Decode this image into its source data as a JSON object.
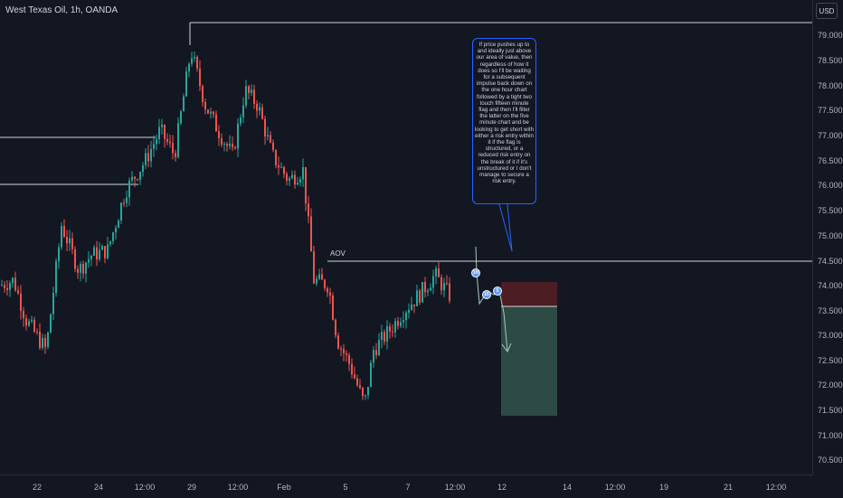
{
  "header": {
    "symbol_title": "West Texas Oil, 1h, OANDA",
    "currency": "USD"
  },
  "price_axis": {
    "ticks": [
      "79.000",
      "78.500",
      "78.000",
      "77.500",
      "77.000",
      "76.500",
      "76.000",
      "75.500",
      "75.000",
      "74.500",
      "74.000",
      "73.500",
      "73.000",
      "72.500",
      "72.000",
      "71.500",
      "71.000",
      "70.500"
    ],
    "current_price": "74.500"
  },
  "time_axis": {
    "ticks": [
      "22",
      "24",
      "12:00",
      "29",
      "12:00",
      "Feb",
      "5",
      "7",
      "12:00",
      "12",
      "14",
      "12:00",
      "19",
      "21",
      "12:00"
    ]
  },
  "annotations": {
    "aov_label": "AOV",
    "note": "If price pushes up to and ideally just above our area of value, then regardless of how it does so I'll be waiting for a subsequent impulse back down on the one hour chart followed by a tight two touch fifteen minute flag and then I'll filter the latter on the five minute chart and be looking to get short with either a risk entry within it if the flag is structured, or a reduced risk entry on the break of it if it's unstructured or I don't manage to secure a risk entry.",
    "markers": [
      "1H",
      "15",
      "5"
    ]
  },
  "colors": {
    "background": "#131722",
    "bullish": "#26a69a",
    "bearish": "#ef5350",
    "stop_zone": "#4c1d23",
    "target_zone": "#2e4a44",
    "note_border": "#2962ff",
    "marker": "#5b9cf6"
  }
}
